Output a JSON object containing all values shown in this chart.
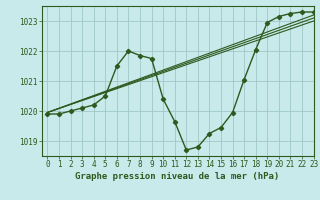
{
  "title": "Graphe pression niveau de la mer (hPa)",
  "background_color": "#c8eaea",
  "grid_color": "#a0c8c8",
  "line_color": "#2d5a1e",
  "xlim": [
    -0.5,
    23
  ],
  "ylim": [
    1018.5,
    1023.5
  ],
  "yticks": [
    1019,
    1020,
    1021,
    1022,
    1023
  ],
  "xticks": [
    0,
    1,
    2,
    3,
    4,
    5,
    6,
    7,
    8,
    9,
    10,
    11,
    12,
    13,
    14,
    15,
    16,
    17,
    18,
    19,
    20,
    21,
    22,
    23
  ],
  "main_x": [
    0,
    1,
    2,
    3,
    4,
    5,
    6,
    7,
    8,
    9,
    10,
    11,
    12,
    13,
    14,
    15,
    16,
    17,
    18,
    19,
    20,
    21,
    22,
    23
  ],
  "main_y": [
    1019.9,
    1019.9,
    1020.0,
    1020.1,
    1020.2,
    1020.5,
    1021.5,
    1022.0,
    1021.85,
    1021.75,
    1020.4,
    1019.65,
    1018.7,
    1018.8,
    1019.25,
    1019.45,
    1019.95,
    1021.05,
    1022.05,
    1022.95,
    1023.15,
    1023.25,
    1023.3,
    1023.3
  ],
  "trend_lines": [
    {
      "x0": 0,
      "y0": 1019.95,
      "x1": 23,
      "y1": 1023.2
    },
    {
      "x0": 0,
      "y0": 1019.95,
      "x1": 23,
      "y1": 1023.1
    },
    {
      "x0": 0,
      "y0": 1019.95,
      "x1": 23,
      "y1": 1023.0
    }
  ],
  "xlabel_fontsize": 6.5,
  "tick_fontsize": 5.5,
  "figsize": [
    3.2,
    2.0
  ],
  "dpi": 100
}
